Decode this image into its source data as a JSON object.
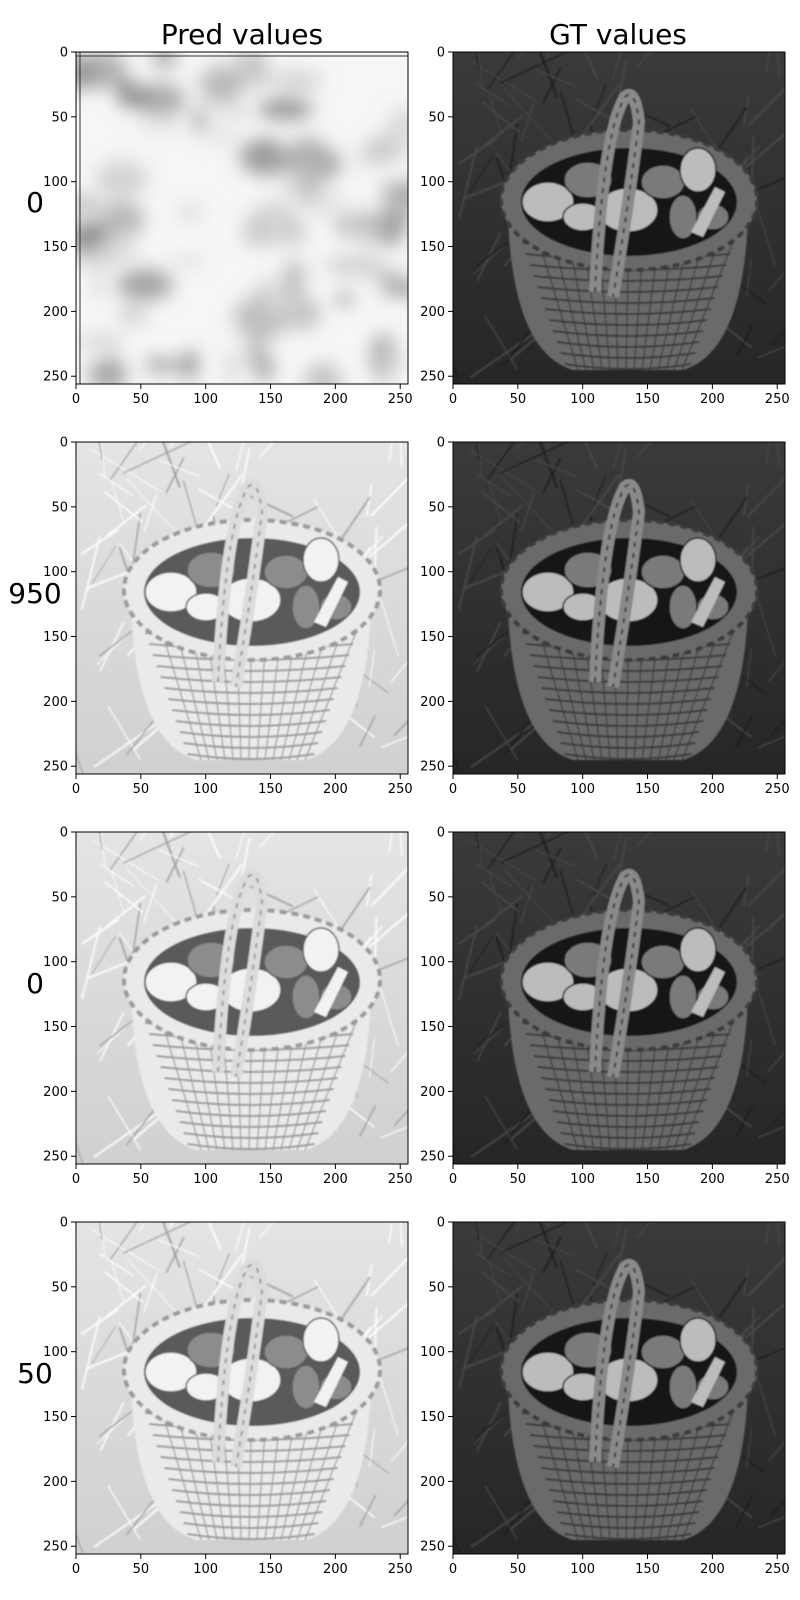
{
  "figure": {
    "columns": [
      {
        "id": "pred",
        "title": "Pred values"
      },
      {
        "id": "gt",
        "title": "GT values"
      }
    ],
    "rows": [
      {
        "label": "0",
        "pred_blur": 9,
        "pred_kind": "noise"
      },
      {
        "label": "950",
        "pred_blur": 0.9,
        "pred_kind": "inverted"
      },
      {
        "label": "0",
        "pred_blur": 0.7,
        "pred_kind": "inverted"
      },
      {
        "label": "50",
        "pred_blur": 0.5,
        "pred_kind": "inverted"
      }
    ],
    "x_ticks": [
      0,
      50,
      100,
      150,
      200,
      250
    ],
    "y_ticks": [
      0,
      50,
      100,
      150,
      200,
      250
    ],
    "axis_range": [
      0,
      256
    ],
    "colormap": "gray"
  }
}
